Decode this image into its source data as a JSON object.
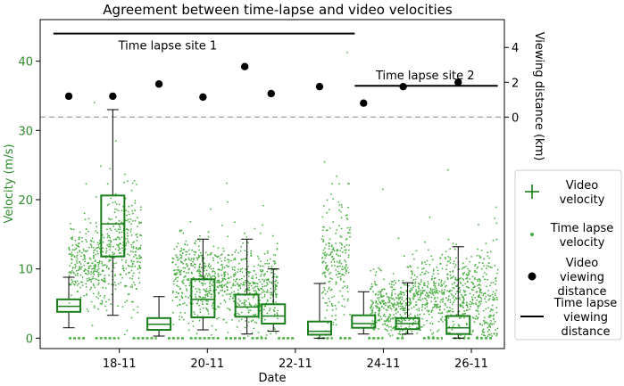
{
  "chart_data": {
    "type": "scatter",
    "title": "Agreement between time-lapse and video velocities",
    "xlabel": "Date",
    "ylabel": "Velocity (m/s)",
    "y2label": "Viewing distance (km)",
    "x_range_days": [
      16.2,
      26.75
    ],
    "x_ticks": [
      {
        "value": 18,
        "label": "18-11"
      },
      {
        "value": 20,
        "label": "20-11"
      },
      {
        "value": 22,
        "label": "22-11"
      },
      {
        "value": 24,
        "label": "24-11"
      },
      {
        "value": 26,
        "label": "26-11"
      }
    ],
    "ylim": [
      -1.5,
      46
    ],
    "y_ticks": [
      0,
      10,
      20,
      30,
      40
    ],
    "y2lim": [
      -13.3,
      5.6
    ],
    "y2_ticks": [
      0,
      2,
      4
    ],
    "grid": false,
    "legend_position": "right",
    "colors": {
      "video": "#1a7f1a",
      "timelapse": "#4caf45",
      "distance": "#000000",
      "dashed": "#aaaaaa",
      "ylabel": "#2e8b2e"
    },
    "series": [
      {
        "name": "Video velocity",
        "kind": "box",
        "boxes": [
          {
            "x": 16.85,
            "whislo": 1.5,
            "q1": 3.8,
            "med": 4.6,
            "q3": 5.6,
            "whishi": 8.8
          },
          {
            "x": 17.85,
            "whislo": 3.3,
            "q1": 11.8,
            "med": 16.5,
            "q3": 20.6,
            "whishi": 33.0
          },
          {
            "x": 18.9,
            "whislo": 0.3,
            "q1": 1.2,
            "med": 2.0,
            "q3": 2.9,
            "whishi": 6.0
          },
          {
            "x": 19.9,
            "whislo": 1.2,
            "q1": 3.0,
            "med": 5.6,
            "q3": 8.5,
            "whishi": 14.3
          },
          {
            "x": 20.9,
            "whislo": 0.6,
            "q1": 3.1,
            "med": 4.5,
            "q3": 6.3,
            "whishi": 14.3
          },
          {
            "x": 21.5,
            "whislo": 1.0,
            "q1": 2.1,
            "med": 3.2,
            "q3": 4.9,
            "whishi": 10.0
          },
          {
            "x": 22.55,
            "whislo": 0.0,
            "q1": 0.5,
            "med": 1.0,
            "q3": 2.4,
            "whishi": 7.9
          },
          {
            "x": 23.55,
            "whislo": 0.6,
            "q1": 1.5,
            "med": 2.1,
            "q3": 3.3,
            "whishi": 6.7
          },
          {
            "x": 24.55,
            "whislo": 0.6,
            "q1": 1.3,
            "med": 2.1,
            "q3": 2.9,
            "whishi": 8.0
          },
          {
            "x": 25.7,
            "whislo": 0.0,
            "q1": 0.6,
            "med": 1.5,
            "q3": 3.2,
            "whishi": 13.2
          }
        ]
      },
      {
        "name": "Time lapse velocity",
        "kind": "scatter_cloud",
        "segments": [
          {
            "x0": 16.85,
            "x1": 17.7,
            "mean": 10.5,
            "sd": 2.6
          },
          {
            "x0": 17.7,
            "x1": 18.5,
            "mean": 12.5,
            "sd": 4.0
          },
          {
            "x0": 19.2,
            "x1": 19.85,
            "mean": 8.5,
            "sd": 3.0
          },
          {
            "x0": 19.85,
            "x1": 20.6,
            "mean": 8.0,
            "sd": 2.4
          },
          {
            "x0": 20.6,
            "x1": 21.6,
            "mean": 7.0,
            "sd": 3.0
          },
          {
            "x0": 22.6,
            "x1": 23.25,
            "mean": 11.0,
            "sd": 4.5
          },
          {
            "x0": 23.7,
            "x1": 24.6,
            "mean": 4.5,
            "sd": 2.2
          },
          {
            "x0": 24.6,
            "x1": 25.3,
            "mean": 6.0,
            "sd": 2.4
          },
          {
            "x0": 25.3,
            "x1": 26.2,
            "mean": 6.5,
            "sd": 3.0
          },
          {
            "x0": 26.2,
            "x1": 26.6,
            "mean": 5.0,
            "sd": 4.0
          }
        ],
        "zero_runs": [
          [
            16.85,
            17.25
          ],
          [
            17.45,
            18.0
          ],
          [
            18.3,
            18.85
          ],
          [
            19.1,
            19.5
          ],
          [
            19.6,
            20.3
          ],
          [
            20.4,
            20.9
          ],
          [
            21.0,
            21.35
          ],
          [
            21.6,
            22.0
          ],
          [
            22.5,
            22.85
          ],
          [
            23.0,
            23.3
          ],
          [
            23.65,
            24.0
          ],
          [
            24.3,
            24.5
          ],
          [
            24.9,
            25.35
          ],
          [
            25.6,
            26.0
          ],
          [
            26.1,
            26.5
          ]
        ]
      },
      {
        "name": "Video viewing distance",
        "kind": "points",
        "points": [
          {
            "x": 16.85,
            "y": 1.2
          },
          {
            "x": 17.85,
            "y": 1.2
          },
          {
            "x": 18.9,
            "y": 1.9
          },
          {
            "x": 19.9,
            "y": 1.15
          },
          {
            "x": 20.85,
            "y": 2.9
          },
          {
            "x": 21.45,
            "y": 1.35
          },
          {
            "x": 22.55,
            "y": 1.75
          },
          {
            "x": 23.55,
            "y": 0.8
          },
          {
            "x": 24.45,
            "y": 1.75
          },
          {
            "x": 25.7,
            "y": 2.0
          }
        ]
      },
      {
        "name": "Time lapse viewing distance",
        "kind": "lines",
        "lines": [
          {
            "x0": 16.5,
            "x1": 23.35,
            "y": 4.8,
            "label": "Time lapse site 1"
          },
          {
            "x0": 23.35,
            "x1": 26.6,
            "y": 1.8,
            "label": "Time lapse site 2"
          }
        ]
      }
    ],
    "reference_line": {
      "y2": 0,
      "style": "dashed"
    },
    "legend": [
      {
        "label": "Video\nvelocity",
        "marker": "plus"
      },
      {
        "label": "Time lapse\nvelocity",
        "marker": "dot"
      },
      {
        "label": "Video\nviewing\ndistance",
        "marker": "circle"
      },
      {
        "label": "Time lapse\nviewing\ndistance",
        "marker": "line"
      }
    ]
  }
}
